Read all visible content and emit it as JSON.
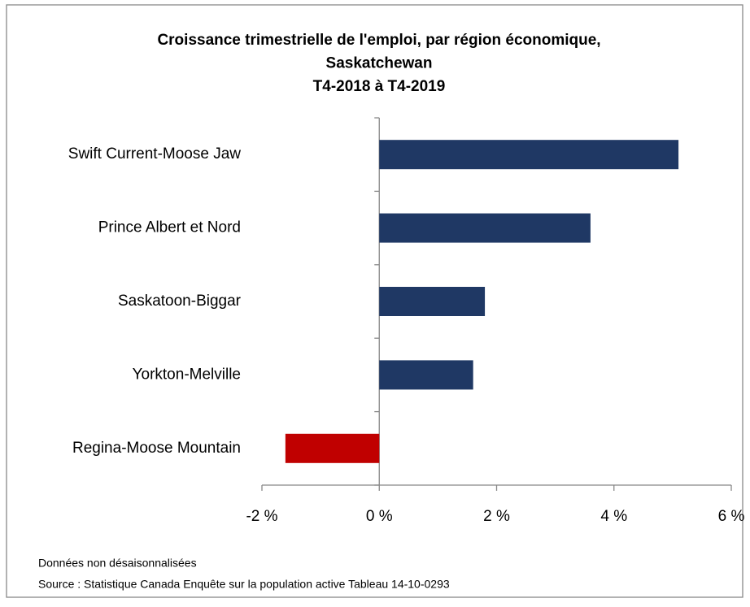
{
  "chart_data": {
    "type": "hbar",
    "title": [
      "Croissance trimestrielle de l'emploi, par région économique,",
      "Saskatchewan",
      "T4-2018 à T4-2019"
    ],
    "categories": [
      "Swift Current-Moose Jaw",
      "Prince Albert et Nord",
      "Saskatoon-Biggar",
      "Yorkton-Melville",
      "Regina-Moose Mountain"
    ],
    "values": [
      5.1,
      3.6,
      1.8,
      1.6,
      -1.6
    ],
    "colors": [
      "#1f3864",
      "#1f3864",
      "#1f3864",
      "#1f3864",
      "#c00000"
    ],
    "xlim": [
      -2,
      6
    ],
    "xticks": [
      {
        "value": -2,
        "label": "-2 %"
      },
      {
        "value": 0,
        "label": "0 %"
      },
      {
        "value": 2,
        "label": "2 %"
      },
      {
        "value": 4,
        "label": "4 %"
      },
      {
        "value": 6,
        "label": "6 %"
      }
    ],
    "grid": false,
    "notes": [
      "Données non désaisonnalisées",
      "Source : Statistique Canada Enquête sur la population active Tableau 14-10-0293"
    ]
  }
}
